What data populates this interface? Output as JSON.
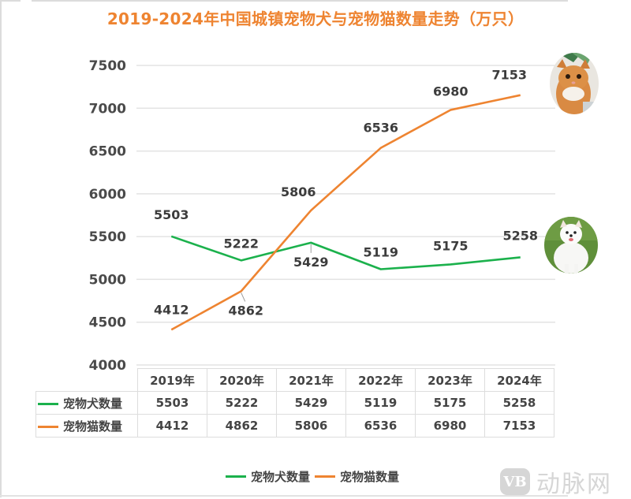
{
  "title": "2019-2024年中国城镇宠物犬与宠物猫数量走势（万只）",
  "colors": {
    "title": "#ee8431",
    "dog_series": "#1bb14c",
    "cat_series": "#ee8431",
    "grid": "#e3e3e3",
    "text": "#444444"
  },
  "chart_data": {
    "type": "line",
    "title": "2019-2024年中国城镇宠物犬与宠物猫数量走势（万只）",
    "xlabel": "",
    "ylabel": "",
    "categories": [
      "2019年",
      "2020年",
      "2021年",
      "2022年",
      "2023年",
      "2024年"
    ],
    "series": [
      {
        "name": "宠物犬数量",
        "color": "#1bb14c",
        "values": [
          5503,
          5222,
          5429,
          5119,
          5175,
          5258
        ]
      },
      {
        "name": "宠物猫数量",
        "color": "#ee8431",
        "values": [
          4412,
          4862,
          5806,
          6536,
          6980,
          7153
        ]
      }
    ],
    "ylim": [
      4000,
      7500
    ],
    "yticks": [
      "4000",
      "4500",
      "5000",
      "5500",
      "6000",
      "6500",
      "7000",
      "7500"
    ],
    "grid": true,
    "legend_position": "bottom",
    "data_table": true
  },
  "table": {
    "headers": [
      "2019年",
      "2020年",
      "2021年",
      "2022年",
      "2023年",
      "2024年"
    ],
    "rows": [
      {
        "label": "宠物犬数量",
        "values": [
          "5503",
          "5222",
          "5429",
          "5119",
          "5175",
          "5258"
        ]
      },
      {
        "label": "宠物猫数量",
        "values": [
          "4412",
          "4862",
          "5806",
          "6536",
          "6980",
          "7153"
        ]
      }
    ]
  },
  "legend": {
    "items": [
      {
        "label": "宠物犬数量"
      },
      {
        "label": "宠物猫数量"
      }
    ]
  },
  "images": {
    "cat": "cat-photo",
    "dog": "dog-photo"
  },
  "watermark": {
    "logo": "VB",
    "text": "动脉网"
  }
}
